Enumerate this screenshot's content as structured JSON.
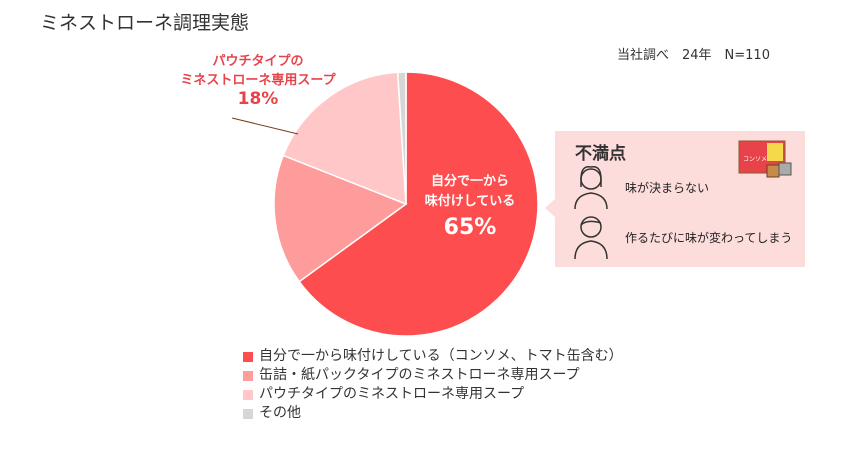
{
  "title": "ミネストローネ調理実態",
  "source": "当社調べ　24年　N=110",
  "chart_data": {
    "type": "pie",
    "title": "ミネストローネ調理実態",
    "categories": [
      "自分で一から味付けしている（コンソメ、トマト缶含む）",
      "缶詰・紙パックタイプのミネストローネ専用スープ",
      "パウチタイプのミネストローネ専用スープ",
      "その他"
    ],
    "values": [
      65,
      16,
      18,
      1
    ],
    "colors": [
      "#fe4d4f",
      "#fe9b9b",
      "#ffc7c7",
      "#d6d6d6"
    ],
    "legend_position": "bottom",
    "annotations": {
      "main_label_line1": "自分で一から",
      "main_label_line2": "味付けしている",
      "main_label_pct": "65%",
      "pouch_label_line1": "パウチタイプの",
      "pouch_label_line2": "ミネストローネ専用スープ",
      "pouch_label_pct": "18%"
    }
  },
  "complaints": {
    "title": "不満点",
    "items": [
      "味が決まらない",
      "作るたびに味が変わってしまう"
    ],
    "product_label": "コンソメ"
  }
}
